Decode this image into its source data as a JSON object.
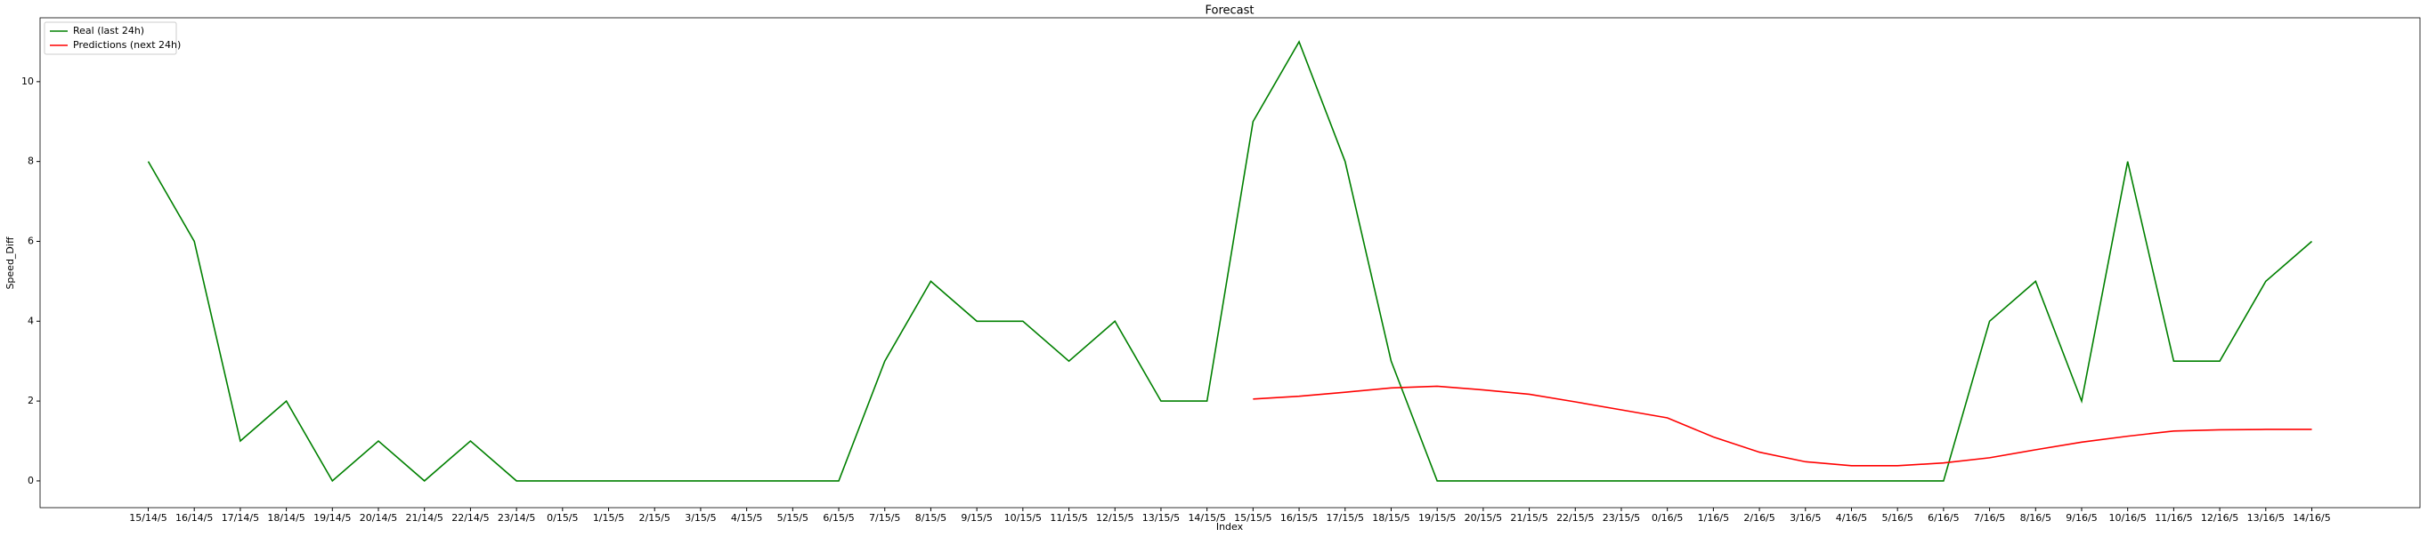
{
  "chart_data": {
    "type": "line",
    "title": "Forecast",
    "x_label": "Index",
    "y_label": "Speed_Diff",
    "categories": [
      "15/14/5",
      "16/14/5",
      "17/14/5",
      "18/14/5",
      "19/14/5",
      "20/14/5",
      "21/14/5",
      "22/14/5",
      "23/14/5",
      "0/15/5",
      "1/15/5",
      "2/15/5",
      "3/15/5",
      "4/15/5",
      "5/15/5",
      "6/15/5",
      "7/15/5",
      "8/15/5",
      "9/15/5",
      "10/15/5",
      "11/15/5",
      "12/15/5",
      "13/15/5",
      "14/15/5",
      "15/15/5",
      "16/15/5",
      "17/15/5",
      "18/15/5",
      "19/15/5",
      "20/15/5",
      "21/15/5",
      "22/15/5",
      "23/15/5",
      "0/16/5",
      "1/16/5",
      "2/16/5",
      "3/16/5",
      "4/16/5",
      "5/16/5",
      "6/16/5",
      "7/16/5",
      "8/16/5",
      "9/16/5",
      "10/16/5",
      "11/16/5",
      "12/16/5",
      "13/16/5",
      "14/16/5"
    ],
    "series": [
      {
        "name": "Real (last 24h)",
        "color": "#008000",
        "values": [
          8,
          6,
          1,
          2,
          0,
          1,
          0,
          1,
          0,
          0,
          0,
          0,
          0,
          0,
          0,
          0,
          3,
          5,
          4,
          4,
          3,
          4,
          2,
          2,
          9,
          11,
          8,
          3,
          0,
          0,
          0,
          0,
          0,
          0,
          0,
          0,
          0,
          0,
          0,
          0,
          4,
          5,
          2,
          8,
          3,
          3,
          5,
          6
        ]
      },
      {
        "name": "Predictions (next 24h)",
        "color": "#ff0000",
        "values": [
          null,
          null,
          null,
          null,
          null,
          null,
          null,
          null,
          null,
          null,
          null,
          null,
          null,
          null,
          null,
          null,
          null,
          null,
          null,
          null,
          null,
          null,
          null,
          null,
          2.05,
          2.12,
          2.22,
          2.33,
          2.37,
          2.28,
          2.17,
          1.98,
          1.78,
          1.58,
          1.1,
          0.72,
          0.48,
          0.38,
          0.38,
          0.45,
          0.58,
          0.78,
          0.97,
          1.12,
          1.25,
          1.28,
          1.29,
          1.29
        ]
      }
    ],
    "ylim": [
      -0.67,
      11.6
    ],
    "yticks": [
      0,
      2,
      4,
      6,
      8,
      10
    ],
    "legend": "upper left"
  }
}
